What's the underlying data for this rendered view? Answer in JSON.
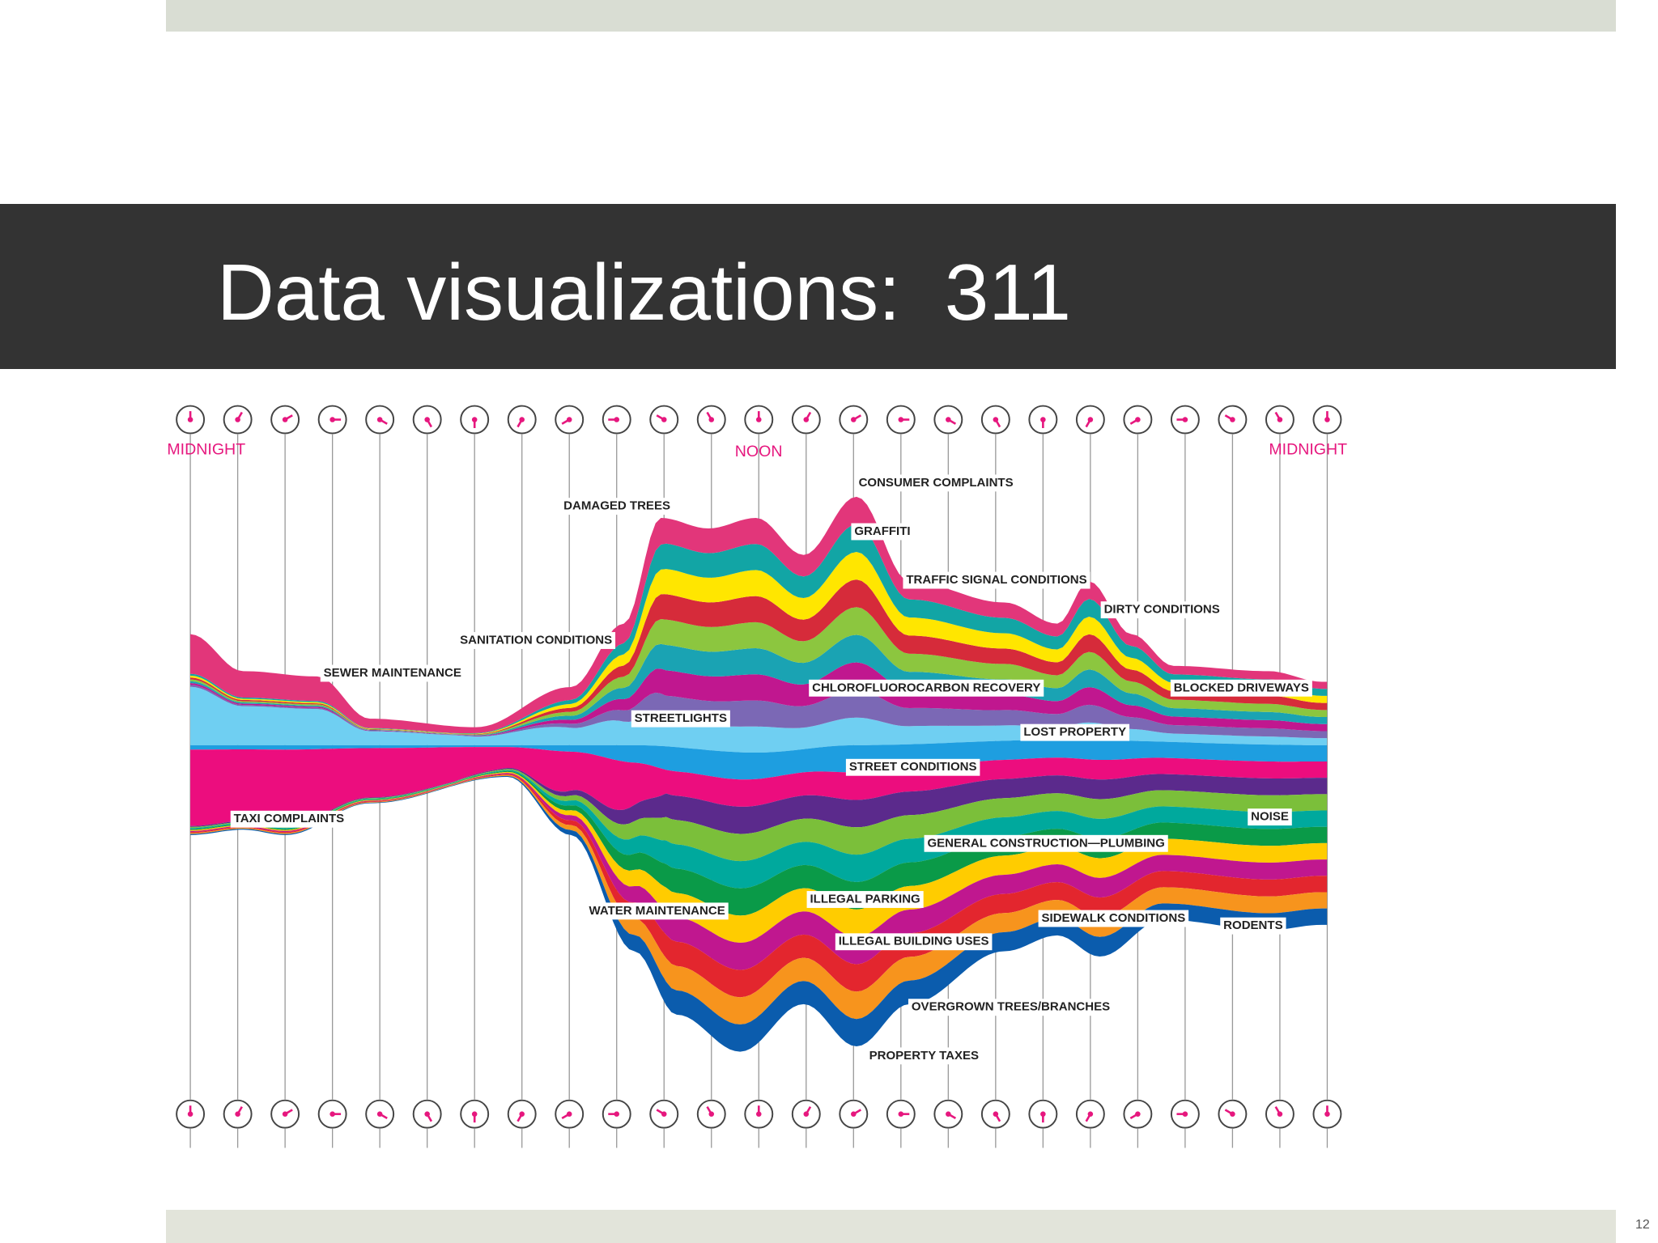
{
  "slide": {
    "title": "Data visualizations:  311",
    "page_number": "12"
  },
  "graphic": {
    "time_labels": [
      "MIDNIGHT",
      "NOON",
      "MIDNIGHT"
    ],
    "stream_labels": [
      "DAMAGED TREES",
      "CONSUMER COMPLAINTS",
      "GRAFFITI",
      "TRAFFIC SIGNAL CONDITIONS",
      "DIRTY CONDITIONS",
      "SANITATION CONDITIONS",
      "SEWER MAINTENANCE",
      "CHLOROFLUOROCARBON RECOVERY",
      "BLOCKED DRIVEWAYS",
      "STREETLIGHTS",
      "LOST PROPERTY",
      "STREET CONDITIONS",
      "TAXI COMPLAINTS",
      "NOISE",
      "GENERAL CONSTRUCTION—PLUMBING",
      "WATER MAINTENANCE",
      "ILLEGAL PARKING",
      "SIDEWALK CONDITIONS",
      "RODENTS",
      "ILLEGAL BUILDING USES",
      "OVERGROWN TREES/BRANCHES",
      "PROPERTY TAXES"
    ]
  }
}
